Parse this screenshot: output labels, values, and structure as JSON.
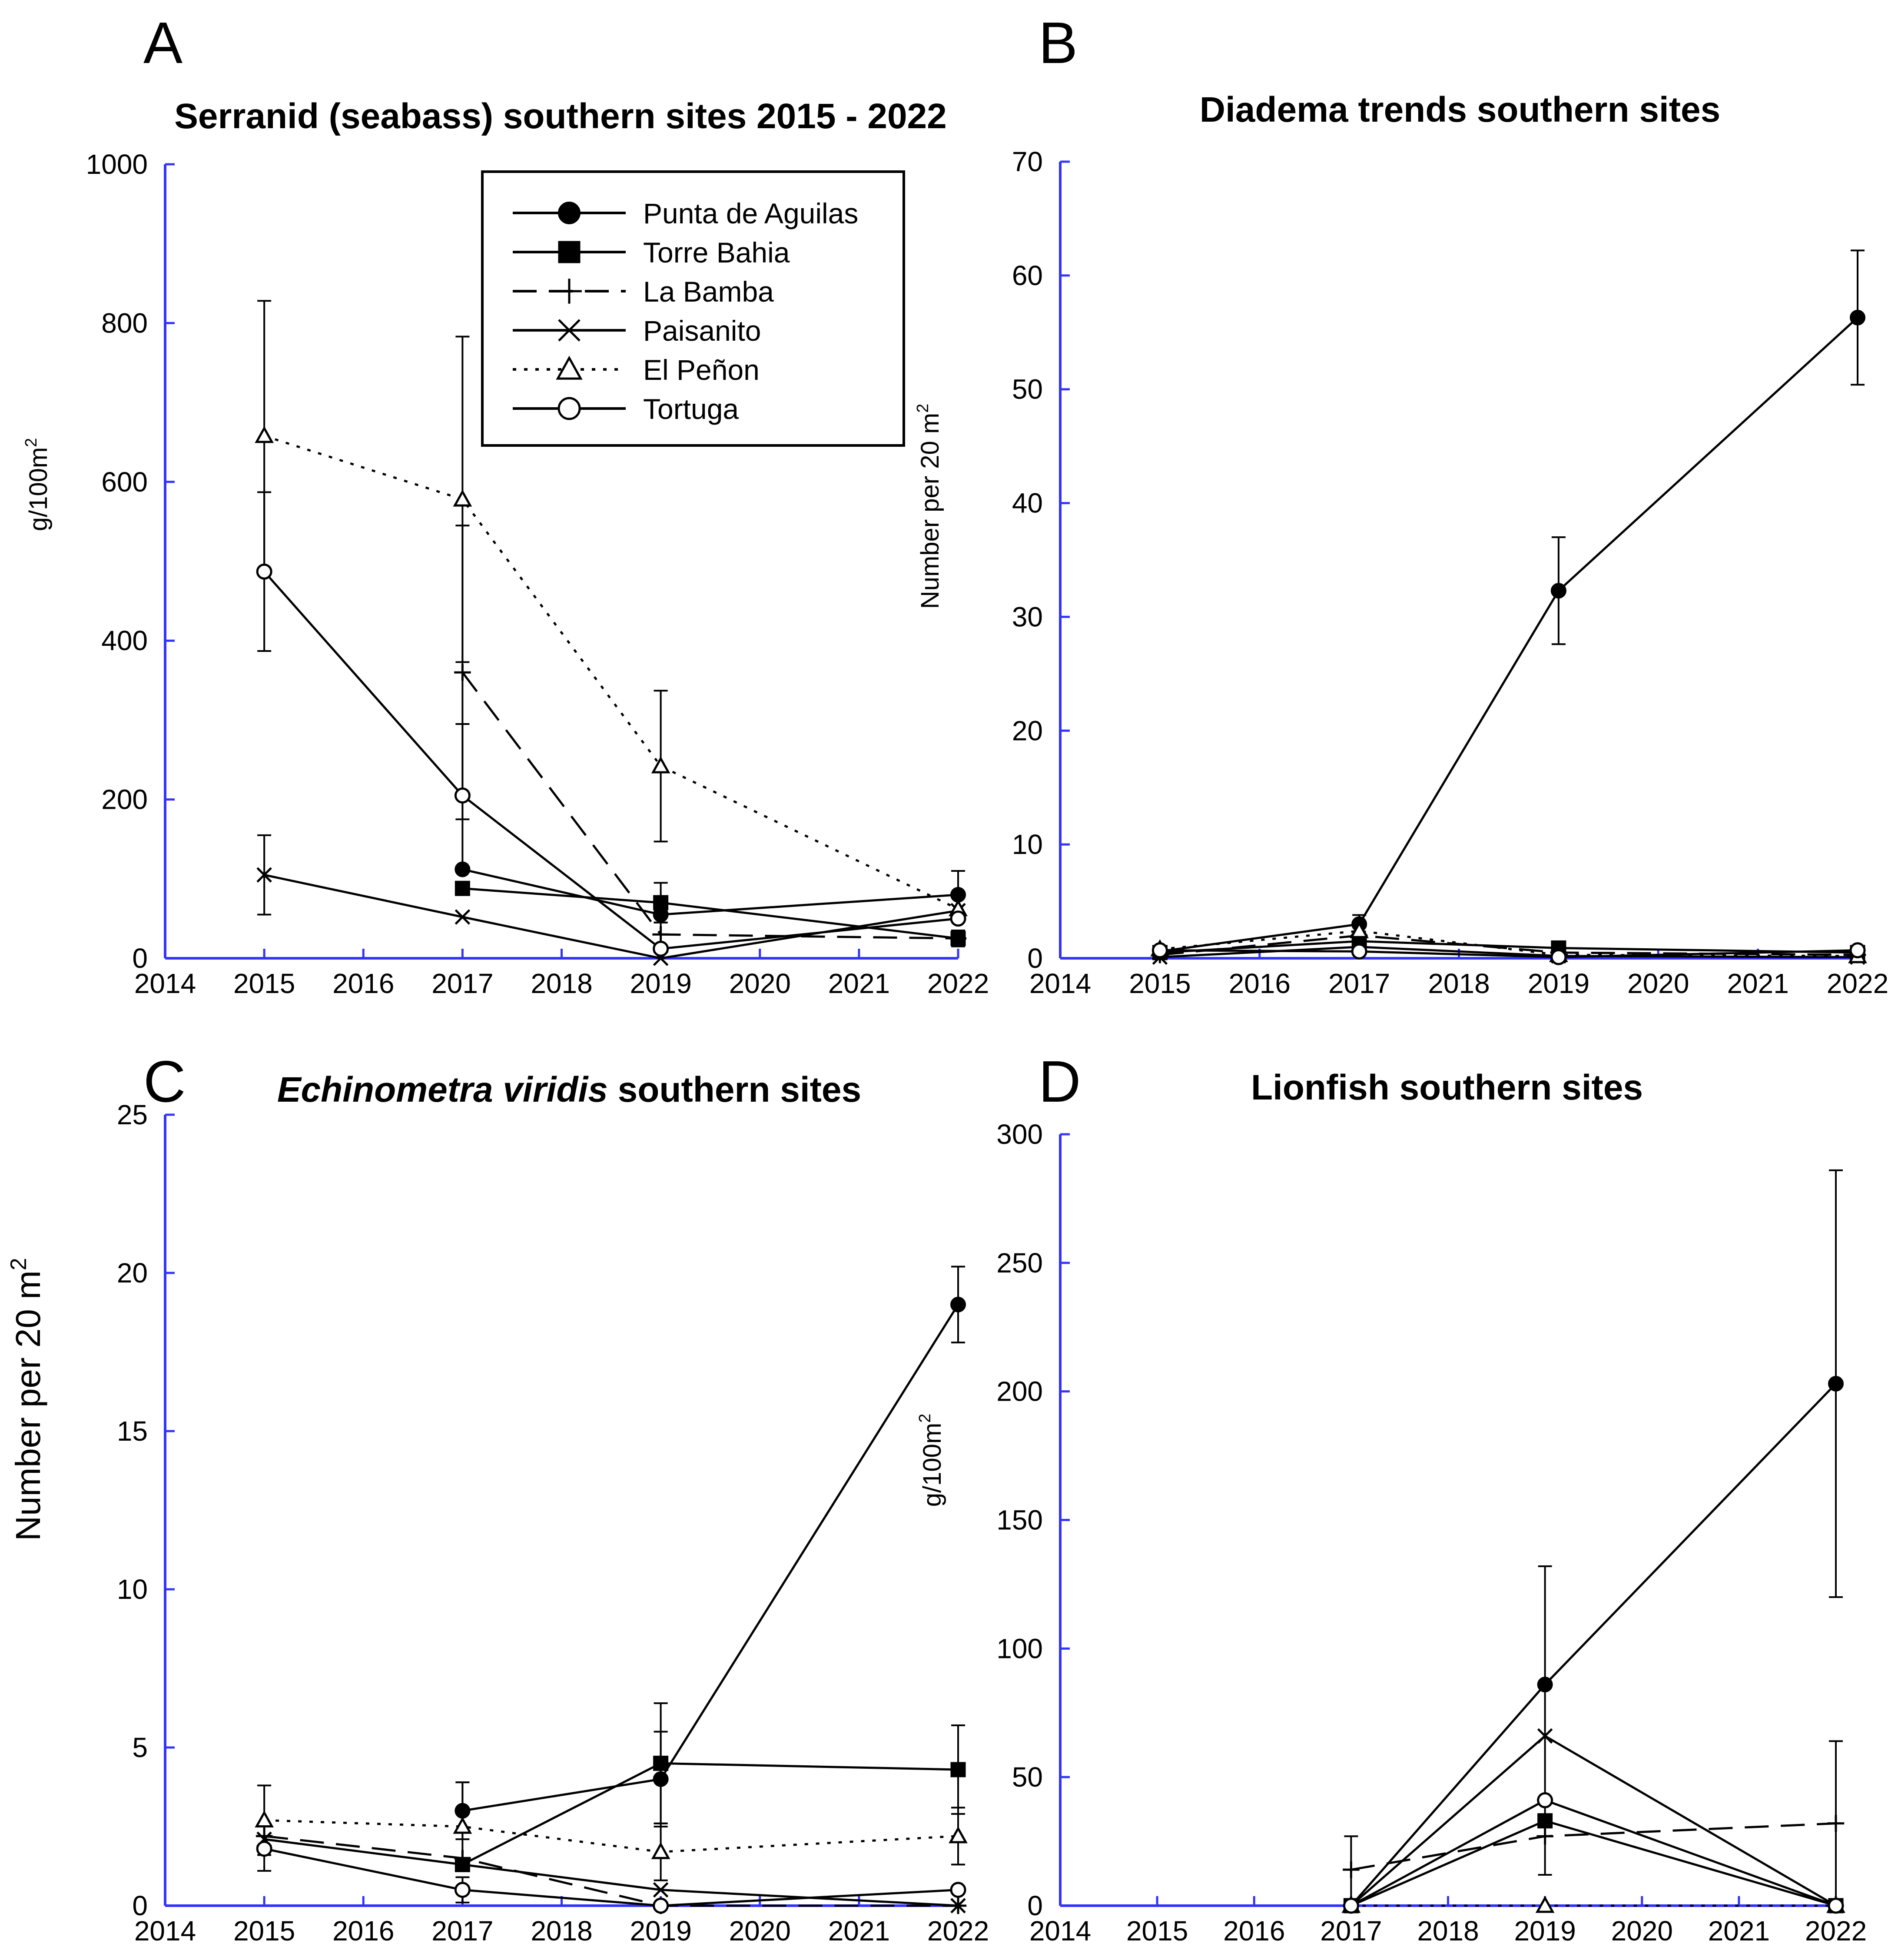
{
  "legend": {
    "entries": [
      {
        "name": "Punta de Aguilas",
        "marker": "filled-circle",
        "dash": "solid"
      },
      {
        "name": "Torre Bahia",
        "marker": "filled-square",
        "dash": "solid"
      },
      {
        "name": "La Bamba",
        "marker": "plus",
        "dash": "long-dash"
      },
      {
        "name": "Paisanito",
        "marker": "x",
        "dash": "solid"
      },
      {
        "name": "El Peñon",
        "marker": "open-triangle",
        "dash": "dotted"
      },
      {
        "name": "Tortuga",
        "marker": "open-circle",
        "dash": "solid"
      }
    ]
  },
  "colors": {
    "axis": "#3333ff",
    "line": "#000000",
    "marker_fill_open": "#ffffff"
  },
  "chart_data": [
    {
      "id": "A",
      "type": "line",
      "letter": "A",
      "title": "Serranid (seabass) southern sites 2015 - 2022",
      "ylabel": "g/100m",
      "ylabel_sup": "2",
      "xlim": [
        2014,
        2022
      ],
      "ylim": [
        0,
        1000
      ],
      "xticks": [
        2014,
        2015,
        2016,
        2017,
        2018,
        2019,
        2020,
        2021,
        2022
      ],
      "yticks": [
        0,
        200,
        400,
        600,
        800,
        1000
      ],
      "series": [
        {
          "name": "Punta de Aguilas",
          "x": [
            2017,
            2019,
            2022
          ],
          "y": [
            112,
            55,
            80
          ],
          "err": [
            0,
            0,
            30
          ]
        },
        {
          "name": "Torre Bahia",
          "x": [
            2017,
            2019,
            2022
          ],
          "y": [
            88,
            70,
            25
          ],
          "err": [
            0,
            25,
            10
          ]
        },
        {
          "name": "La Bamba",
          "x": [
            2017,
            2019,
            2022
          ],
          "y": [
            360,
            30,
            25
          ],
          "err": [
            185,
            15,
            10
          ]
        },
        {
          "name": "Paisanito",
          "x": [
            2015,
            2017,
            2019,
            2022
          ],
          "y": [
            105,
            52,
            0,
            60
          ],
          "err": [
            50,
            0,
            0,
            0
          ]
        },
        {
          "name": "El Peñon",
          "x": [
            2015,
            2017,
            2019,
            2022
          ],
          "y": [
            658,
            578,
            242,
            62
          ],
          "err": [
            170,
            205,
            95,
            0
          ]
        },
        {
          "name": "Tortuga",
          "x": [
            2015,
            2017,
            2019,
            2022
          ],
          "y": [
            487,
            205,
            12,
            50
          ],
          "err": [
            100,
            90,
            0,
            0
          ]
        }
      ]
    },
    {
      "id": "B",
      "type": "line",
      "letter": "B",
      "title": "Diadema trends southern sites",
      "ylabel": "Number per 20 m",
      "ylabel_sup": "2",
      "xlim": [
        2014,
        2022
      ],
      "ylim": [
        0,
        70
      ],
      "xticks": [
        2014,
        2015,
        2016,
        2017,
        2018,
        2019,
        2020,
        2021,
        2022
      ],
      "yticks": [
        0,
        10,
        20,
        30,
        40,
        50,
        60,
        70
      ],
      "series": [
        {
          "name": "Punta de Aguilas",
          "x": [
            2015,
            2017,
            2019,
            2022
          ],
          "y": [
            0.6,
            3.0,
            32.3,
            56.3
          ],
          "err": [
            0,
            0.8,
            4.7,
            5.9
          ]
        },
        {
          "name": "Torre Bahia",
          "x": [
            2015,
            2017,
            2019,
            2022
          ],
          "y": [
            0.5,
            1.5,
            0.9,
            0.5
          ],
          "err": [
            0,
            0,
            0,
            0
          ]
        },
        {
          "name": "La Bamba",
          "x": [
            2015,
            2017,
            2019,
            2022
          ],
          "y": [
            0.3,
            2.0,
            0.5,
            0.3
          ],
          "err": [
            0,
            0,
            0,
            0
          ]
        },
        {
          "name": "Paisanito",
          "x": [
            2015,
            2017,
            2019,
            2022
          ],
          "y": [
            0.1,
            1.0,
            0.2,
            0.1
          ],
          "err": [
            0,
            0,
            0,
            0
          ]
        },
        {
          "name": "El Peñon",
          "x": [
            2015,
            2017,
            2019,
            2022
          ],
          "y": [
            0.8,
            2.4,
            0.3,
            0.2
          ],
          "err": [
            0,
            0,
            0,
            0
          ]
        },
        {
          "name": "Tortuga",
          "x": [
            2015,
            2017,
            2019,
            2022
          ],
          "y": [
            0.7,
            0.6,
            0.1,
            0.7
          ],
          "err": [
            0,
            0,
            0,
            0
          ]
        }
      ]
    },
    {
      "id": "C",
      "type": "line",
      "letter": "C",
      "title_italic": "Echinometra viridis",
      "title_rest": " southern sites",
      "ylabel": "Number per 20 m",
      "ylabel_sup": "2",
      "xlim": [
        2014,
        2022
      ],
      "ylim": [
        0,
        25
      ],
      "xticks": [
        2014,
        2015,
        2016,
        2017,
        2018,
        2019,
        2020,
        2021,
        2022
      ],
      "yticks": [
        0,
        5,
        10,
        15,
        20,
        25
      ],
      "series": [
        {
          "name": "Punta de Aguilas",
          "x": [
            2017,
            2019,
            2022
          ],
          "y": [
            3.0,
            4.0,
            19.0
          ],
          "err": [
            0.9,
            1.5,
            1.2
          ]
        },
        {
          "name": "Torre Bahia",
          "x": [
            2017,
            2019,
            2022
          ],
          "y": [
            1.3,
            4.5,
            4.3
          ],
          "err": [
            0,
            1.9,
            1.4
          ]
        },
        {
          "name": "La Bamba",
          "x": [
            2015,
            2017,
            2019,
            2022
          ],
          "y": [
            2.2,
            1.5,
            0.0,
            0.0
          ],
          "err": [
            0,
            0,
            0,
            0
          ]
        },
        {
          "name": "Paisanito",
          "x": [
            2015,
            2017,
            2019,
            2022
          ],
          "y": [
            2.1,
            1.3,
            0.5,
            0.0
          ],
          "err": [
            0,
            0,
            0,
            0
          ]
        },
        {
          "name": "El Peñon",
          "x": [
            2015,
            2017,
            2019,
            2022
          ],
          "y": [
            2.7,
            2.5,
            1.7,
            2.2
          ],
          "err": [
            1.1,
            1.4,
            0.9,
            0.9
          ]
        },
        {
          "name": "Tortuga",
          "x": [
            2015,
            2017,
            2019,
            2022
          ],
          "y": [
            1.8,
            0.5,
            0.0,
            0.5
          ],
          "err": [
            0.7,
            0.4,
            0,
            0
          ]
        }
      ]
    },
    {
      "id": "D",
      "type": "line",
      "letter": "D",
      "title": "Lionfish  southern sites",
      "ylabel": "g/100m",
      "ylabel_sup": "2",
      "xlim": [
        2014,
        2022
      ],
      "ylim": [
        0,
        300
      ],
      "xticks": [
        2014,
        2015,
        2016,
        2017,
        2018,
        2019,
        2020,
        2021,
        2022
      ],
      "yticks": [
        0,
        50,
        100,
        150,
        200,
        250,
        300
      ],
      "series": [
        {
          "name": "Punta de Aguilas",
          "x": [
            2017,
            2019,
            2022
          ],
          "y": [
            0,
            86,
            203
          ],
          "err": [
            0,
            46,
            83
          ]
        },
        {
          "name": "Torre Bahia",
          "x": [
            2017,
            2019,
            2022
          ],
          "y": [
            0,
            33,
            0
          ],
          "err": [
            0,
            0,
            0
          ]
        },
        {
          "name": "La Bamba",
          "x": [
            2017,
            2019,
            2022
          ],
          "y": [
            14,
            27,
            32
          ],
          "err": [
            13,
            15,
            32
          ]
        },
        {
          "name": "Paisanito",
          "x": [
            2017,
            2019,
            2022
          ],
          "y": [
            0,
            66,
            0
          ],
          "err": [
            0,
            0,
            0
          ]
        },
        {
          "name": "El Peñon",
          "x": [
            2017,
            2019,
            2022
          ],
          "y": [
            0,
            0,
            0
          ],
          "err": [
            0,
            0,
            0
          ]
        },
        {
          "name": "Tortuga",
          "x": [
            2017,
            2019,
            2022
          ],
          "y": [
            0,
            41,
            0
          ],
          "err": [
            0,
            0,
            0
          ]
        }
      ]
    }
  ]
}
